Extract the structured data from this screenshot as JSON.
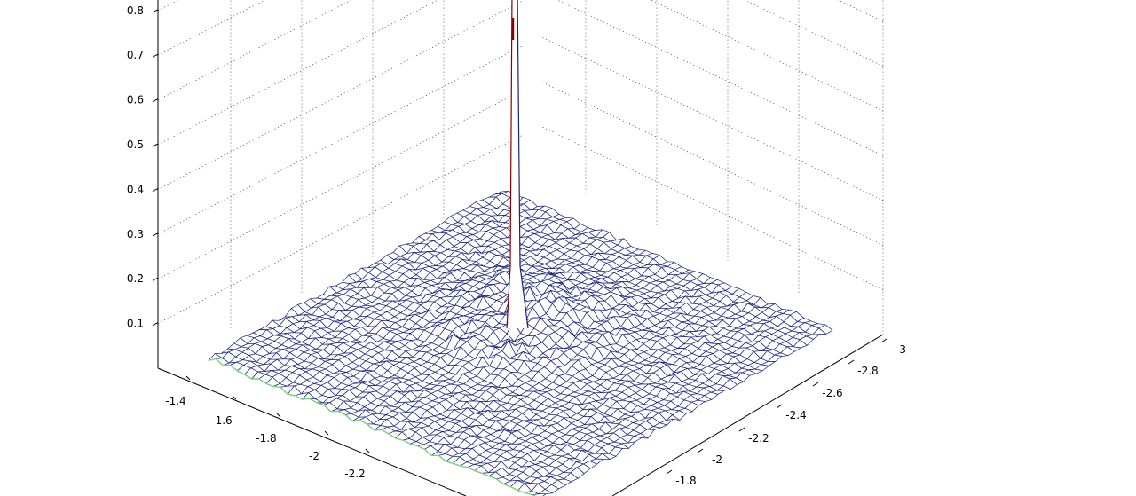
{
  "chart_data": {
    "type": "surface",
    "title": "",
    "xlabel": "",
    "ylabel": "",
    "zlabel": "",
    "grid": true,
    "z_ticks": [
      "0.1",
      "0.2",
      "0.3",
      "0.4",
      "0.5",
      "0.6",
      "0.7",
      "0.8"
    ],
    "left_axis_ticks": [
      "-1.4",
      "-1.6",
      "-1.8",
      "-2",
      "-2.2"
    ],
    "right_axis_ticks": [
      "-1.8",
      "-2",
      "-2.2",
      "-2.4",
      "-2.6",
      "-2.8",
      "-3"
    ],
    "z_range": [
      0,
      0.8
    ],
    "peak": {
      "value_above": 0.8
    },
    "colors": {
      "mesh": "#1a237e",
      "peak_edge": "#8b0000",
      "boundary": "#7ccd7c",
      "grid": "#000000"
    }
  }
}
